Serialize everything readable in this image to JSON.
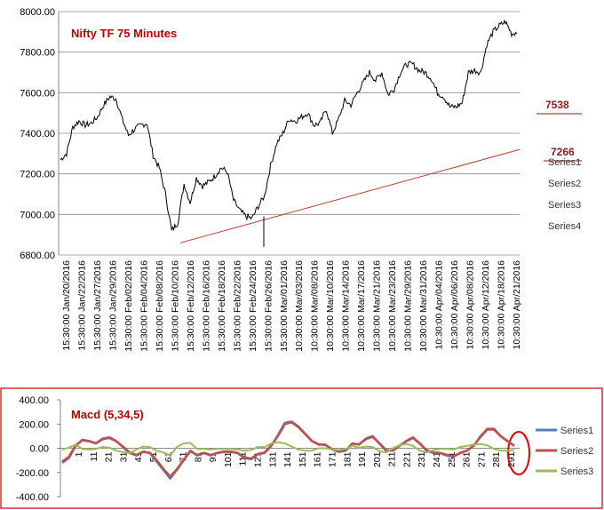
{
  "chart_data": [
    {
      "type": "line",
      "title": "Nifty TF 75 Minutes",
      "ylim": [
        6800,
        8000
      ],
      "y_ticks": [
        "8000.00",
        "7800.00",
        "7600.00",
        "7400.00",
        "7200.00",
        "7000.00",
        "6800.00"
      ],
      "grid": true,
      "categories": [
        "15:30:00 Jan/20/2016",
        "15:30:00 Jan/22/2016",
        "15:30:00 Jan/27/2016",
        "15:30:00 Jan/29/2016",
        "15:30:00 Feb/02/2016",
        "15:30:00 Feb/04/2016",
        "15:30:00 Feb/08/2016",
        "15:30:00 Feb/10/2016",
        "15:30:00 Feb/12/2016",
        "15:30:00 Feb/16/2016",
        "15:30:00 Feb/18/2016",
        "15:30:00 Feb/22/2016",
        "15:30:00 Feb/24/2016",
        "15:30:00 Feb/26/2016",
        "15:30:00 Mar/01/2016",
        "10:30:00 Mar/03/2016",
        "10:30:00 Mar/08/2016",
        "10:30:00 Mar/10/2016",
        "10:30:00 Mar/14/2016",
        "10:30:00 Mar/17/2016",
        "10:30:00 Mar/21/2016",
        "10:30:00 Mar/23/2016",
        "10:30:00 Mar/29/2016",
        "10:30:00 Mar/31/2016",
        "10:30:00 Apr/04/2016",
        "10:30:00 Apr/06/2016",
        "10:30:00 Apr/08/2016",
        "10:30:00 Apr/12/2016",
        "10:30:00 Apr/18/2016",
        "10:30:00 Apr/21/2016"
      ],
      "price": [
        7270,
        7300,
        7430,
        7460,
        7440,
        7450,
        7480,
        7540,
        7580,
        7570,
        7470,
        7390,
        7420,
        7440,
        7450,
        7290,
        7230,
        7100,
        6920,
        6960,
        7150,
        7060,
        7180,
        7140,
        7160,
        7190,
        7230,
        7210,
        7070,
        7020,
        6990,
        6980,
        7040,
        7090,
        7240,
        7350,
        7400,
        7470,
        7460,
        7480,
        7500,
        7440,
        7450,
        7520,
        7400,
        7470,
        7560,
        7540,
        7600,
        7650,
        7700,
        7660,
        7700,
        7590,
        7620,
        7700,
        7740,
        7740,
        7710,
        7700,
        7670,
        7600,
        7580,
        7530,
        7530,
        7550,
        7700,
        7710,
        7700,
        7840,
        7900,
        7930,
        7950,
        7890,
        7900
      ],
      "price_low_mark": 6840,
      "levels": [
        {
          "label": "7538",
          "value": 7538
        },
        {
          "label": "7266",
          "value": 7266
        }
      ],
      "trendline": {
        "from": 6860,
        "to": 7320
      },
      "legend": [
        "Series1",
        "Series2",
        "Series3",
        "Series4"
      ],
      "legend_position": "right"
    },
    {
      "type": "line",
      "title": "Macd (5,34,5)",
      "ylim": [
        -400,
        400
      ],
      "y_ticks": [
        "400.00",
        "200.00",
        "0.00",
        "-200.00",
        "-400.00"
      ],
      "x_ticks": [
        "1",
        "11",
        "21",
        "31",
        "41",
        "51",
        "61",
        "71",
        "81",
        "91",
        "101",
        "111",
        "121",
        "131",
        "141",
        "151",
        "161",
        "171",
        "181",
        "191",
        "201",
        "211",
        "221",
        "231",
        "241",
        "251",
        "261",
        "271",
        "281",
        "291"
      ],
      "series": [
        {
          "name": "Series1",
          "color": "#4f81bd",
          "values": [
            -120,
            -80,
            20,
            70,
            60,
            40,
            80,
            90,
            60,
            10,
            -40,
            -60,
            -30,
            -40,
            -110,
            -180,
            -250,
            -180,
            -100,
            -20,
            -60,
            -40,
            -60,
            -40,
            -30,
            -30,
            -40,
            -80,
            -90,
            -50,
            -40,
            20,
            110,
            210,
            220,
            180,
            120,
            60,
            30,
            30,
            -10,
            -30,
            -20,
            40,
            30,
            80,
            100,
            40,
            -20,
            -20,
            20,
            60,
            90,
            40,
            -20,
            -40,
            -40,
            -60,
            -70,
            -40,
            -20,
            20,
            100,
            160,
            160,
            100,
            60,
            20
          ]
        },
        {
          "name": "Series2",
          "color": "#c0504d",
          "values": [
            -110,
            -70,
            25,
            65,
            58,
            42,
            75,
            85,
            58,
            15,
            -35,
            -55,
            -28,
            -38,
            -100,
            -170,
            -235,
            -175,
            -95,
            -25,
            -55,
            -38,
            -55,
            -38,
            -28,
            -28,
            -38,
            -75,
            -85,
            -48,
            -35,
            25,
            105,
            200,
            215,
            175,
            118,
            60,
            32,
            28,
            -8,
            -28,
            -18,
            38,
            32,
            75,
            95,
            42,
            -15,
            -18,
            20,
            58,
            85,
            40,
            -15,
            -35,
            -38,
            -55,
            -65,
            -38,
            -18,
            22,
            95,
            155,
            155,
            98,
            58,
            20
          ]
        },
        {
          "name": "Series3",
          "color": "#9bbb59",
          "values": [
            -10,
            5,
            30,
            -5,
            -10,
            -5,
            10,
            5,
            -20,
            -30,
            -40,
            -10,
            15,
            10,
            -20,
            -35,
            -60,
            10,
            40,
            45,
            -5,
            -5,
            -10,
            -5,
            -5,
            -5,
            -10,
            -20,
            -15,
            10,
            10,
            40,
            50,
            40,
            15,
            -10,
            -20,
            -20,
            0,
            0,
            -10,
            -15,
            -5,
            20,
            5,
            15,
            10,
            -25,
            -35,
            0,
            25,
            35,
            20,
            -20,
            -35,
            -15,
            -5,
            -5,
            -10,
            10,
            20,
            30,
            35,
            25,
            -5,
            -20,
            -20,
            -15
          ]
        }
      ],
      "legend": [
        "Series1",
        "Series2",
        "Series3"
      ],
      "legend_position": "right"
    }
  ]
}
